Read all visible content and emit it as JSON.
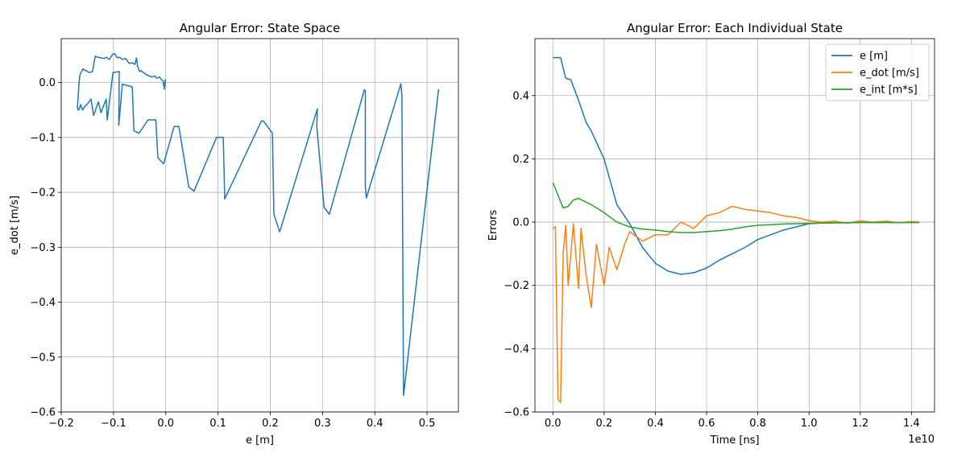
{
  "chart_data": [
    {
      "type": "line",
      "title": "Angular Error: State Space",
      "xlabel": "e [m]",
      "ylabel": "e_dot [m/s]",
      "xlim": [
        -0.2,
        0.56
      ],
      "ylim": [
        -0.6,
        0.08
      ],
      "xticks": [
        -0.2,
        -0.1,
        0.0,
        0.1,
        0.2,
        0.3,
        0.4,
        0.5
      ],
      "xtick_labels": [
        "−0.2",
        "−0.1",
        "0.0",
        "0.1",
        "0.2",
        "0.3",
        "0.4",
        "0.5"
      ],
      "yticks": [
        0.0,
        -0.1,
        -0.2,
        -0.3,
        -0.4,
        -0.5,
        -0.6
      ],
      "ytick_labels": [
        "0.0",
        "−0.1",
        "−0.2",
        "−0.3",
        "−0.4",
        "−0.5",
        "−0.6"
      ],
      "grid": true,
      "series": [
        {
          "color": "#1f77b4",
          "x": [
            0.522,
            0.522,
            0.455,
            0.452,
            0.452,
            0.45,
            0.384,
            0.382,
            0.382,
            0.38,
            0.313,
            0.303,
            0.289,
            0.29,
            0.218,
            0.207,
            0.204,
            0.187,
            0.183,
            0.113,
            0.11,
            0.097,
            0.054,
            0.044,
            0.025,
            0.016,
            -0.004,
            -0.015,
            -0.019,
            -0.034,
            -0.051,
            -0.061,
            -0.064,
            -0.083,
            -0.09,
            -0.089,
            -0.101,
            -0.112,
            -0.114,
            -0.124,
            -0.129,
            -0.138,
            -0.143,
            -0.149,
            -0.156,
            -0.159,
            -0.163,
            -0.165,
            -0.168,
            -0.169,
            -0.168,
            -0.166,
            -0.164,
            -0.161,
            -0.158,
            -0.155,
            -0.152,
            -0.147,
            -0.14,
            -0.135,
            -0.13,
            -0.124,
            -0.118,
            -0.113,
            -0.108,
            -0.104,
            -0.101,
            -0.097,
            -0.093,
            -0.088,
            -0.083,
            -0.077,
            -0.07,
            -0.064,
            -0.059,
            -0.056,
            -0.054,
            -0.05,
            -0.047,
            -0.043,
            -0.038,
            -0.032,
            -0.026,
            -0.021,
            -0.017,
            -0.012,
            -0.008,
            -0.005,
            -0.004,
            -0.002,
            -0.003,
            -0.001,
            -0.002,
            -0.001
          ],
          "y": [
            -0.015,
            -0.013,
            -0.57,
            -0.033,
            -0.025,
            -0.002,
            -0.21,
            -0.19,
            -0.015,
            -0.013,
            -0.24,
            -0.227,
            -0.08,
            -0.048,
            -0.272,
            -0.24,
            -0.092,
            -0.07,
            -0.07,
            -0.212,
            -0.1,
            -0.1,
            -0.198,
            -0.19,
            -0.08,
            -0.08,
            -0.148,
            -0.137,
            -0.068,
            -0.068,
            -0.092,
            -0.088,
            -0.008,
            -0.003,
            -0.078,
            0.02,
            0.018,
            -0.068,
            -0.03,
            -0.055,
            -0.035,
            -0.06,
            -0.03,
            -0.038,
            -0.045,
            -0.05,
            -0.04,
            -0.048,
            -0.05,
            -0.045,
            -0.03,
            0.0,
            0.015,
            0.02,
            0.025,
            0.022,
            0.022,
            0.018,
            0.02,
            0.048,
            0.046,
            0.045,
            0.044,
            0.046,
            0.042,
            0.048,
            0.052,
            0.052,
            0.045,
            0.046,
            0.042,
            0.044,
            0.035,
            0.036,
            0.033,
            0.045,
            0.03,
            0.02,
            0.022,
            0.018,
            0.015,
            0.012,
            0.01,
            0.012,
            0.008,
            0.01,
            0.005,
            0.003,
            -0.005,
            -0.01,
            -0.012,
            0.005,
            -0.008,
            0.002
          ]
        }
      ]
    },
    {
      "type": "line",
      "title": "Angular Error: Each Individual State",
      "xlabel": "Time [ns]",
      "ylabel": "Errors",
      "offset_text": "1e10",
      "xlim": [
        -0.07,
        1.49
      ],
      "ylim": [
        -0.6,
        0.58
      ],
      "xticks": [
        0.0,
        0.2,
        0.4,
        0.6,
        0.8,
        1.0,
        1.2,
        1.4
      ],
      "xtick_labels": [
        "0.0",
        "0.2",
        "0.4",
        "0.6",
        "0.8",
        "1.0",
        "1.2",
        "1.4"
      ],
      "yticks": [
        0.4,
        0.2,
        0.0,
        -0.2,
        -0.4,
        -0.6
      ],
      "ytick_labels": [
        "0.4",
        "0.2",
        "0.0",
        "−0.2",
        "−0.4",
        "−0.6"
      ],
      "grid": true,
      "legend": {
        "location": "top-right",
        "entries": [
          "e [m]",
          "e_dot [m/s]",
          "e_int [m*s]"
        ]
      },
      "series": [
        {
          "name": "e [m]",
          "color": "#1f77b4",
          "x": [
            0.0,
            0.03,
            0.05,
            0.07,
            0.1,
            0.13,
            0.15,
            0.2,
            0.25,
            0.3,
            0.35,
            0.4,
            0.45,
            0.5,
            0.55,
            0.6,
            0.65,
            0.7,
            0.75,
            0.8,
            0.85,
            0.9,
            0.95,
            1.0,
            1.05,
            1.1,
            1.15,
            1.2,
            1.25,
            1.3,
            1.35,
            1.4,
            1.43
          ],
          "y": [
            0.52,
            0.52,
            0.455,
            0.45,
            0.385,
            0.315,
            0.288,
            0.2,
            0.055,
            -0.005,
            -0.08,
            -0.13,
            -0.155,
            -0.165,
            -0.16,
            -0.145,
            -0.12,
            -0.1,
            -0.08,
            -0.055,
            -0.04,
            -0.025,
            -0.015,
            -0.005,
            -0.003,
            -0.002,
            -0.002,
            -0.001,
            -0.001,
            -0.001,
            -0.001,
            -0.001,
            -0.001
          ]
        },
        {
          "name": "e_dot [m/s]",
          "color": "#ff7f0e",
          "x": [
            0.0,
            0.01,
            0.02,
            0.03,
            0.04,
            0.05,
            0.06,
            0.08,
            0.1,
            0.11,
            0.13,
            0.15,
            0.17,
            0.2,
            0.22,
            0.25,
            0.28,
            0.3,
            0.35,
            0.4,
            0.45,
            0.5,
            0.55,
            0.6,
            0.65,
            0.7,
            0.75,
            0.8,
            0.85,
            0.9,
            0.95,
            1.0,
            1.05,
            1.1,
            1.15,
            1.2,
            1.25,
            1.3,
            1.35,
            1.4,
            1.43
          ],
          "y": [
            -0.02,
            -0.015,
            -0.56,
            -0.57,
            -0.1,
            -0.01,
            -0.2,
            -0.005,
            -0.21,
            -0.02,
            -0.17,
            -0.27,
            -0.07,
            -0.2,
            -0.08,
            -0.15,
            -0.07,
            -0.03,
            -0.06,
            -0.04,
            -0.04,
            0.0,
            -0.02,
            0.02,
            0.03,
            0.05,
            0.04,
            0.035,
            0.03,
            0.02,
            0.015,
            0.005,
            0.0,
            0.003,
            -0.003,
            0.004,
            0.0,
            0.003,
            -0.002,
            0.002,
            0.0
          ]
        },
        {
          "name": "e_int [m*s]",
          "color": "#2ca02c",
          "x": [
            0.0,
            0.02,
            0.04,
            0.06,
            0.08,
            0.1,
            0.15,
            0.2,
            0.25,
            0.3,
            0.35,
            0.4,
            0.45,
            0.5,
            0.55,
            0.6,
            0.65,
            0.7,
            0.75,
            0.8,
            0.85,
            0.9,
            0.95,
            1.0,
            1.05,
            1.1,
            1.15,
            1.2,
            1.25,
            1.3,
            1.35,
            1.4,
            1.43
          ],
          "y": [
            0.125,
            0.085,
            0.045,
            0.05,
            0.07,
            0.075,
            0.055,
            0.03,
            0.0,
            -0.015,
            -0.022,
            -0.025,
            -0.03,
            -0.033,
            -0.033,
            -0.03,
            -0.027,
            -0.022,
            -0.015,
            -0.01,
            -0.008,
            -0.006,
            -0.005,
            -0.004,
            -0.003,
            -0.002,
            -0.002,
            -0.001,
            -0.001,
            -0.001,
            -0.001,
            -0.001,
            -0.001
          ]
        }
      ]
    }
  ]
}
